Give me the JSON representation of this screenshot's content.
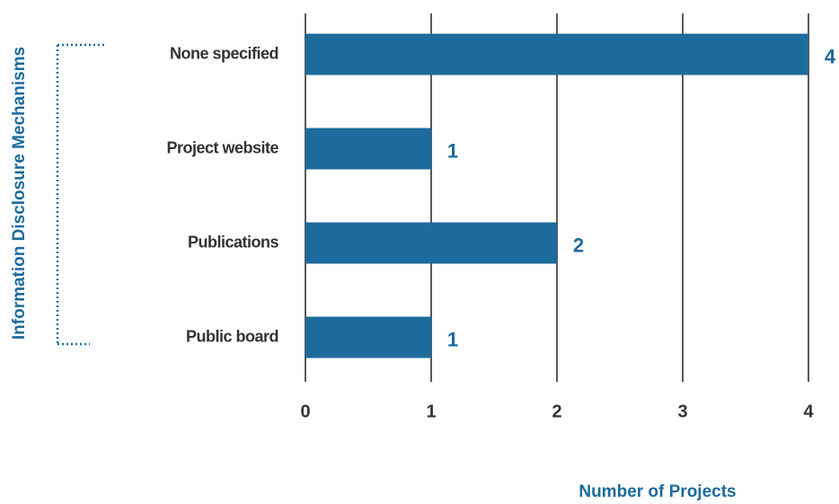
{
  "chart_data": {
    "type": "bar",
    "orientation": "horizontal",
    "x_label": "Number of Projects",
    "y_label": "Information Disclosure Mechanisms",
    "categories": [
      "None specified",
      "Project website",
      "Publications",
      "Public board"
    ],
    "values": [
      4,
      1,
      2,
      1
    ],
    "color": "#1c6b9c",
    "xlim": [
      0,
      4
    ],
    "xticks": [
      0,
      1,
      2,
      3,
      4
    ],
    "grid": true
  }
}
